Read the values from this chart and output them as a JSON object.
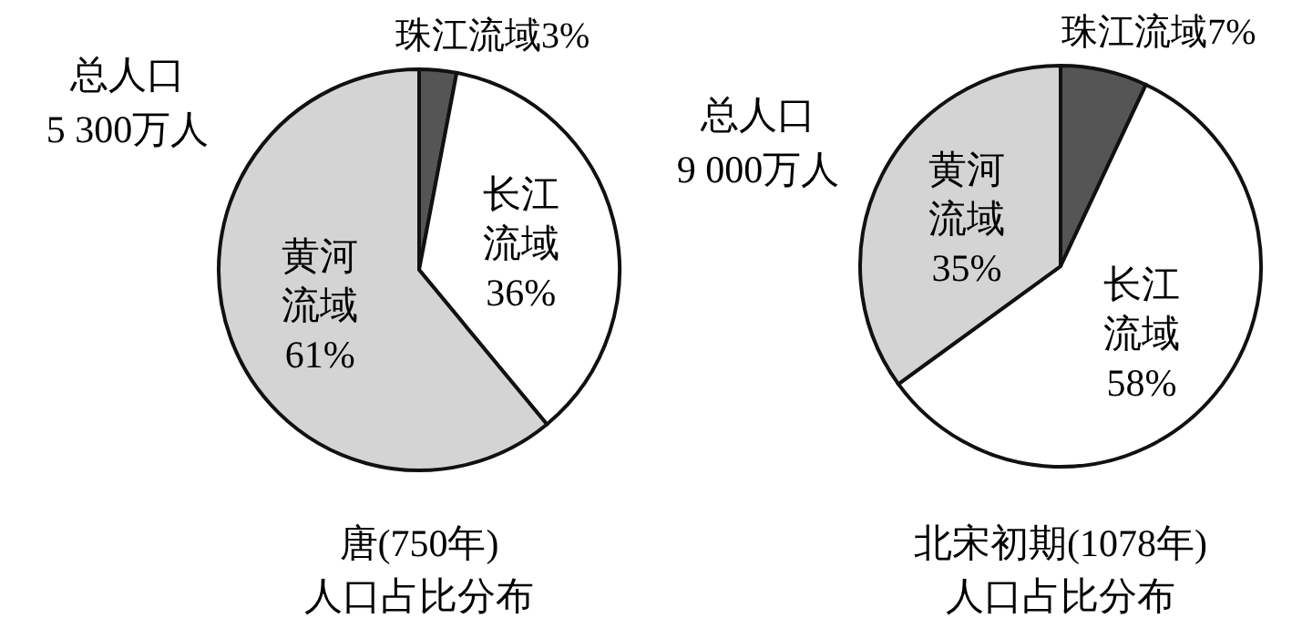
{
  "chart_data": [
    {
      "type": "pie",
      "title": "唐(750年)",
      "subtitle": "人口占比分布",
      "annotations": [
        "总人口\n5 300万人"
      ],
      "categories": [
        "珠江流域",
        "长江流域",
        "黄河流域"
      ],
      "values": [
        3,
        36,
        61
      ],
      "value_labels": [
        "3%",
        "36%",
        "61%"
      ],
      "colors": [
        "#555555",
        "#ffffff",
        "#d4d4d4"
      ]
    },
    {
      "type": "pie",
      "title": "北宋初期(1078年)",
      "subtitle": "人口占比分布",
      "annotations": [
        "总人口\n9 000万人"
      ],
      "categories": [
        "珠江流域",
        "长江流域",
        "黄河流域"
      ],
      "values": [
        7,
        58,
        35
      ],
      "value_labels": [
        "7%",
        "58%",
        "35%"
      ],
      "colors": [
        "#555555",
        "#ffffff",
        "#d4d4d4"
      ]
    }
  ]
}
